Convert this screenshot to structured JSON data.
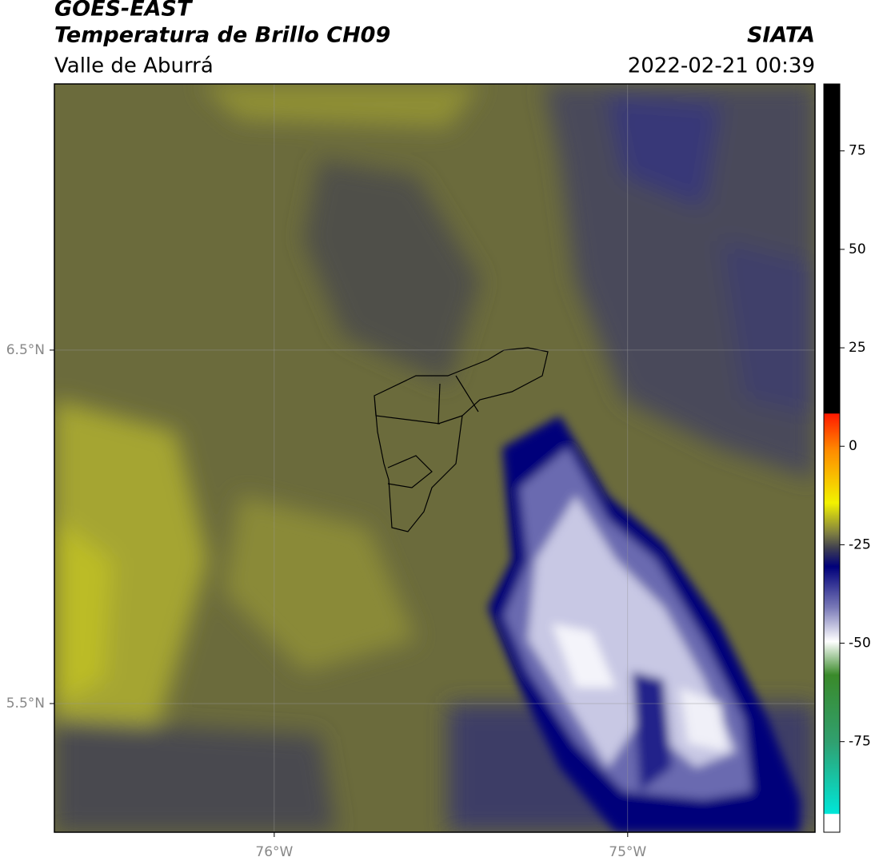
{
  "header": {
    "title": "GOES-EAST",
    "subtitle": "Temperatura de Brillo CH09",
    "region": "Valle de Aburrá",
    "source": "SIATA",
    "datetime": "2022-02-21 00:39"
  },
  "map": {
    "xlim": [
      -76.622,
      -74.47
    ],
    "ylim": [
      5.136,
      7.253
    ],
    "xticks": [
      {
        "value": -76,
        "label": "76°W"
      },
      {
        "value": -75,
        "label": "75°W"
      }
    ],
    "yticks": [
      {
        "value": 6.5,
        "label": "6.5°N"
      },
      {
        "value": 5.5,
        "label": "5.5°N"
      }
    ],
    "grid": true
  },
  "colorbar": {
    "lim": [
      -98,
      92
    ],
    "ticks": [
      75,
      50,
      25,
      0,
      -25,
      -50,
      -75
    ]
  }
}
